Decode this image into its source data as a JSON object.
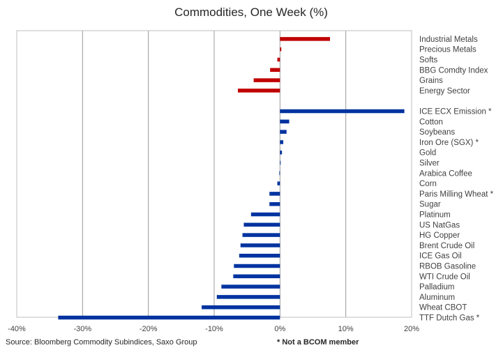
{
  "chart_data": {
    "type": "bar",
    "orientation": "horizontal",
    "title": "Commodities, One Week (%)",
    "xlabel": "",
    "ylabel": "",
    "xlim": [
      -40,
      20
    ],
    "x_ticks": [
      -40,
      -30,
      -20,
      -10,
      0,
      10,
      20
    ],
    "x_tick_labels": [
      "-40%",
      "-30%",
      "-20%",
      "-10%",
      "0%",
      "10%",
      "20%"
    ],
    "grid": "vertical",
    "groups": [
      {
        "color": "#c00000",
        "categories": [
          "Industrial Metals",
          "Precious Metals",
          "Softs",
          "BBG Comdty Index",
          "Grains",
          "Energy Sector"
        ],
        "values": [
          7.6,
          0.2,
          -0.4,
          -1.5,
          -4.0,
          -6.4
        ]
      },
      {
        "color": "#0033a0",
        "categories": [
          "ICE ECX Emission *",
          "Cotton",
          "Soybeans",
          "Iron Ore (SGX) *",
          "Gold",
          "Silver",
          "Arabica Coffee",
          "Corn",
          "Paris Milling Wheat *",
          "Sugar",
          "Platinum",
          "US NatGas",
          "HG Copper",
          "Brent Crude Oil",
          "ICE Gas Oil",
          "RBOB Gasoline",
          "WTI Crude Oil",
          "Palladium",
          "Aluminum",
          "Wheat CBOT",
          "TTF Dutch Gas *"
        ],
        "values": [
          18.9,
          1.4,
          1.0,
          0.5,
          0.3,
          0.1,
          -0.1,
          -0.4,
          -1.6,
          -1.6,
          -4.4,
          -5.5,
          -5.7,
          -6.0,
          -6.2,
          -7.0,
          -7.1,
          -8.9,
          -9.6,
          -11.9,
          -33.7
        ]
      }
    ]
  },
  "footer": {
    "source": "Source: Bloomberg Commodity Subindices, Saxo Group",
    "note": "* Not a BCOM member"
  }
}
